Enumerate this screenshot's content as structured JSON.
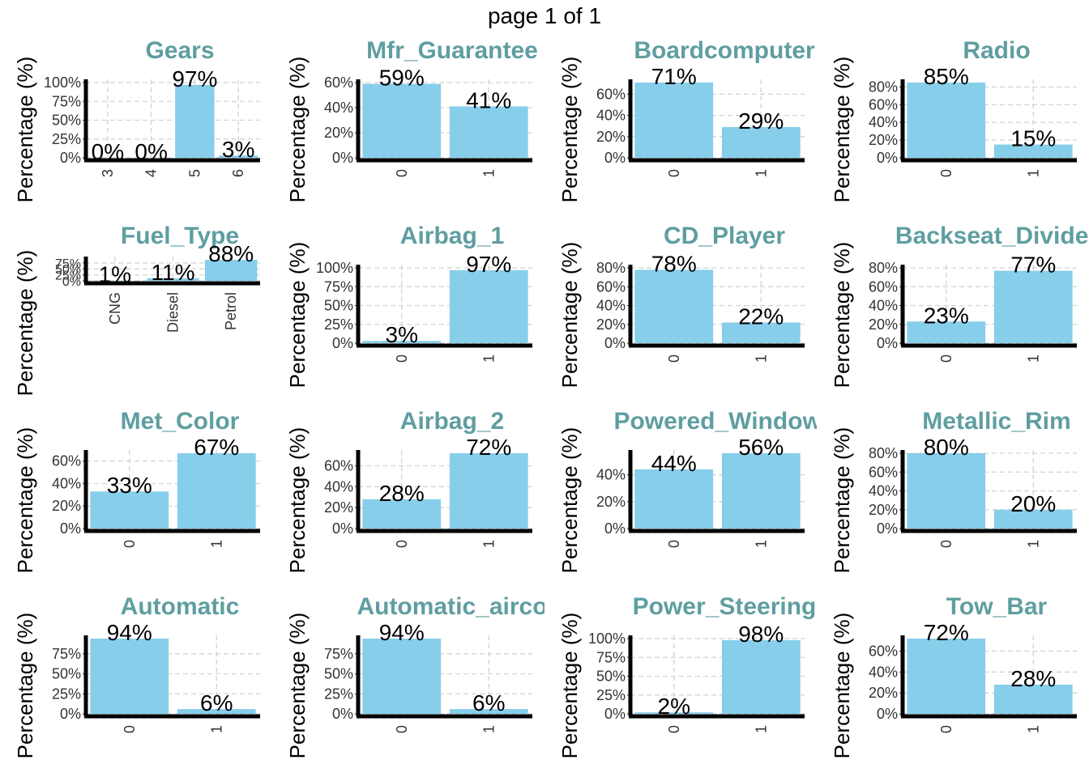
{
  "page": {
    "title": "page 1 of 1"
  },
  "style": {
    "bar_color": "#87CEEB",
    "title_color": "#5F9EA0",
    "grid_color": "#d3d3d3",
    "ylabel": "Percentage (%)"
  },
  "chart_data": [
    {
      "type": "bar",
      "title": "Gears",
      "ylabel": "Percentage (%)",
      "categories": [
        "3",
        "4",
        "5",
        "6"
      ],
      "values": [
        0.1,
        0.1,
        97,
        3
      ],
      "labels": [
        "0%",
        "0%",
        "97%",
        "3%"
      ],
      "ylim": [
        0,
        100
      ],
      "yticks": [
        0,
        25,
        50,
        75,
        100
      ],
      "yticklabels": [
        "0%",
        "25%",
        "50%",
        "75%",
        "100%"
      ]
    },
    {
      "type": "bar",
      "title": "Mfr_Guarantee",
      "ylabel": "Percentage (%)",
      "categories": [
        "0",
        "1"
      ],
      "values": [
        59,
        41
      ],
      "labels": [
        "59%",
        "41%"
      ],
      "ylim": [
        0,
        60
      ],
      "yticks": [
        0,
        20,
        40,
        60
      ],
      "yticklabels": [
        "0%",
        "20%",
        "40%",
        "60%"
      ]
    },
    {
      "type": "bar",
      "title": "Boardcomputer",
      "ylabel": "Percentage (%)",
      "categories": [
        "0",
        "1"
      ],
      "values": [
        71,
        29
      ],
      "labels": [
        "71%",
        "29%"
      ],
      "ylim": [
        0,
        71
      ],
      "yticks": [
        0,
        20,
        40,
        60
      ],
      "yticklabels": [
        "0%",
        "20%",
        "40%",
        "60%"
      ]
    },
    {
      "type": "bar",
      "title": "Radio",
      "ylabel": "Percentage (%)",
      "categories": [
        "0",
        "1"
      ],
      "values": [
        85,
        15
      ],
      "labels": [
        "85%",
        "15%"
      ],
      "ylim": [
        0,
        85
      ],
      "yticks": [
        0,
        20,
        40,
        60,
        80
      ],
      "yticklabels": [
        "0%",
        "20%",
        "40%",
        "60%",
        "80%"
      ]
    },
    {
      "type": "bar",
      "title": "Fuel_Type",
      "ylabel": "Percentage (%)",
      "categories": [
        "CNG",
        "Diesel",
        "Petrol"
      ],
      "values": [
        1,
        11,
        88
      ],
      "labels": [
        "1%",
        "11%",
        "88%"
      ],
      "ylim": [
        0,
        88
      ],
      "yticks": [
        0,
        25,
        50,
        75
      ],
      "yticklabels": [
        "0%",
        "25%",
        "50%",
        "75%"
      ]
    },
    {
      "type": "bar",
      "title": "Airbag_1",
      "ylabel": "Percentage (%)",
      "categories": [
        "0",
        "1"
      ],
      "values": [
        3,
        97
      ],
      "labels": [
        "3%",
        "97%"
      ],
      "ylim": [
        0,
        100
      ],
      "yticks": [
        0,
        25,
        50,
        75,
        100
      ],
      "yticklabels": [
        "0%",
        "25%",
        "50%",
        "75%",
        "100%"
      ]
    },
    {
      "type": "bar",
      "title": "CD_Player",
      "ylabel": "Percentage (%)",
      "categories": [
        "0",
        "1"
      ],
      "values": [
        78,
        22
      ],
      "labels": [
        "78%",
        "22%"
      ],
      "ylim": [
        0,
        80
      ],
      "yticks": [
        0,
        20,
        40,
        60,
        80
      ],
      "yticklabels": [
        "0%",
        "20%",
        "40%",
        "60%",
        "80%"
      ]
    },
    {
      "type": "bar",
      "title": "Backseat_Divider",
      "ylabel": "Percentage (%)",
      "categories": [
        "0",
        "1"
      ],
      "values": [
        23,
        77
      ],
      "labels": [
        "23%",
        "77%"
      ],
      "ylim": [
        0,
        80
      ],
      "yticks": [
        0,
        20,
        40,
        60,
        80
      ],
      "yticklabels": [
        "0%",
        "20%",
        "40%",
        "60%",
        "80%"
      ]
    },
    {
      "type": "bar",
      "title": "Met_Color",
      "ylabel": "Percentage (%)",
      "categories": [
        "0",
        "1"
      ],
      "values": [
        33,
        67
      ],
      "labels": [
        "33%",
        "67%"
      ],
      "ylim": [
        0,
        67
      ],
      "yticks": [
        0,
        20,
        40,
        60
      ],
      "yticklabels": [
        "0%",
        "20%",
        "40%",
        "60%"
      ]
    },
    {
      "type": "bar",
      "title": "Airbag_2",
      "ylabel": "Percentage (%)",
      "categories": [
        "0",
        "1"
      ],
      "values": [
        28,
        72
      ],
      "labels": [
        "28%",
        "72%"
      ],
      "ylim": [
        0,
        72
      ],
      "yticks": [
        0,
        20,
        40,
        60
      ],
      "yticklabels": [
        "0%",
        "20%",
        "40%",
        "60%"
      ]
    },
    {
      "type": "bar",
      "title": "Powered_Windows",
      "ylabel": "Percentage (%)",
      "categories": [
        "0",
        "1"
      ],
      "values": [
        44,
        56
      ],
      "labels": [
        "44%",
        "56%"
      ],
      "ylim": [
        0,
        56
      ],
      "yticks": [
        0,
        20,
        40
      ],
      "yticklabels": [
        "0%",
        "20%",
        "40%"
      ]
    },
    {
      "type": "bar",
      "title": "Metallic_Rim",
      "ylabel": "Percentage (%)",
      "categories": [
        "0",
        "1"
      ],
      "values": [
        80,
        20
      ],
      "labels": [
        "80%",
        "20%"
      ],
      "ylim": [
        0,
        80
      ],
      "yticks": [
        0,
        20,
        40,
        60,
        80
      ],
      "yticklabels": [
        "0%",
        "20%",
        "40%",
        "60%",
        "80%"
      ]
    },
    {
      "type": "bar",
      "title": "Automatic",
      "ylabel": "Percentage (%)",
      "categories": [
        "0",
        "1"
      ],
      "values": [
        94,
        6
      ],
      "labels": [
        "94%",
        "6%"
      ],
      "ylim": [
        0,
        94
      ],
      "yticks": [
        0,
        25,
        50,
        75
      ],
      "yticklabels": [
        "0%",
        "25%",
        "50%",
        "75%"
      ]
    },
    {
      "type": "bar",
      "title": "Automatic_airco",
      "ylabel": "Percentage (%)",
      "categories": [
        "0",
        "1"
      ],
      "values": [
        94,
        6
      ],
      "labels": [
        "94%",
        "6%"
      ],
      "ylim": [
        0,
        94
      ],
      "yticks": [
        0,
        25,
        50,
        75
      ],
      "yticklabels": [
        "0%",
        "25%",
        "50%",
        "75%"
      ]
    },
    {
      "type": "bar",
      "title": "Power_Steering",
      "ylabel": "Percentage (%)",
      "categories": [
        "0",
        "1"
      ],
      "values": [
        2,
        98
      ],
      "labels": [
        "2%",
        "98%"
      ],
      "ylim": [
        0,
        100
      ],
      "yticks": [
        0,
        25,
        50,
        75,
        100
      ],
      "yticklabels": [
        "0%",
        "25%",
        "50%",
        "75%",
        "100%"
      ]
    },
    {
      "type": "bar",
      "title": "Tow_Bar",
      "ylabel": "Percentage (%)",
      "categories": [
        "0",
        "1"
      ],
      "values": [
        72,
        28
      ],
      "labels": [
        "72%",
        "28%"
      ],
      "ylim": [
        0,
        72
      ],
      "yticks": [
        0,
        20,
        40,
        60
      ],
      "yticklabels": [
        "0%",
        "20%",
        "40%",
        "60%"
      ]
    }
  ]
}
